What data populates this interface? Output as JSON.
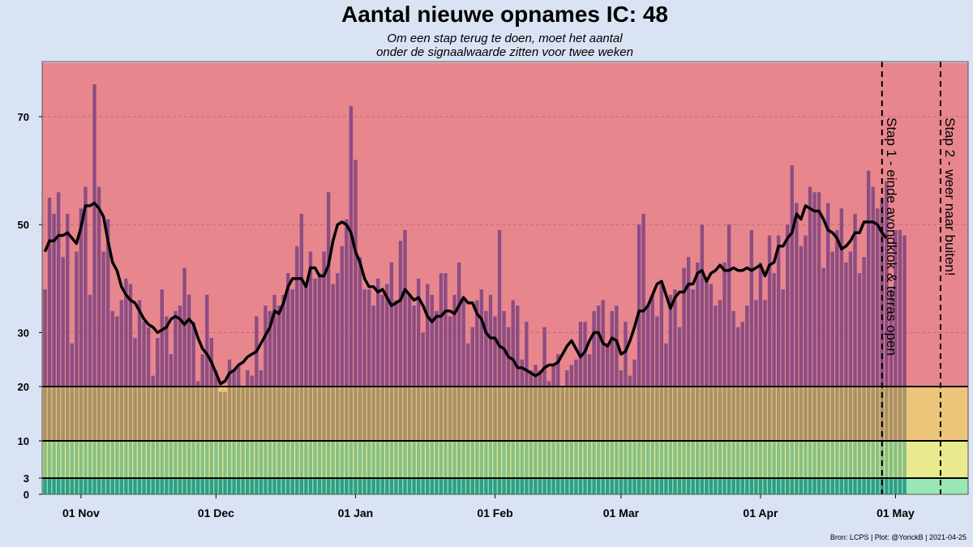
{
  "title": "Aantal nieuwe opnames IC:  48",
  "subtitle_line1": "Om een stap terug te doen, moet het aantal",
  "subtitle_line2": "onder de signaalwaarde zitten voor twee weken",
  "source": "Bron: LCPS | Plot: @YorickB |  2021-04-25",
  "colors": {
    "red_zone": "#e8868e",
    "orange_zone": "#ecc47a",
    "yellow_zone": "#e8ea8d",
    "green_zone": "#9ae6b4",
    "bar_purple": "#8c4d82",
    "bar_olive": "#a99268",
    "bar_green": "#88bf88",
    "bar_teal": "#2e9e88",
    "background": "#d9e3f3"
  },
  "chart_data": {
    "type": "bar",
    "x_start": "2020-10-24",
    "x_ticks": [
      "01 Nov",
      "01 Dec",
      "01 Jan",
      "01 Feb",
      "01 Mar",
      "01 Apr",
      "01 May"
    ],
    "y_ticks": [
      0,
      3,
      10,
      20,
      30,
      50,
      70
    ],
    "ylim": [
      0,
      80
    ],
    "thresholds": [
      3,
      10,
      20
    ],
    "grid_lines": [
      30,
      50,
      70
    ],
    "series": [
      {
        "name": "",
        "type": "bar",
        "values": [
          38,
          55,
          52,
          56,
          44,
          52,
          28,
          45,
          53,
          57,
          37,
          76,
          57,
          45,
          51,
          34,
          33,
          36,
          40,
          39,
          29,
          36,
          32,
          31,
          22,
          29,
          38,
          33,
          26,
          34,
          35,
          42,
          37,
          32,
          21,
          26,
          37,
          29,
          23,
          19,
          19,
          25,
          23,
          24,
          20,
          23,
          22,
          33,
          23,
          35,
          34,
          37,
          35,
          37,
          41,
          38,
          46,
          52,
          39,
          45,
          40,
          41,
          45,
          56,
          39,
          41,
          46,
          51,
          72,
          62,
          44,
          38,
          38,
          35,
          40,
          37,
          39,
          43,
          36,
          47,
          49,
          37,
          35,
          40,
          30,
          39,
          37,
          34,
          41,
          41,
          33,
          37,
          43,
          36,
          28,
          31,
          36,
          38,
          34,
          37,
          33,
          49,
          34,
          31,
          36,
          35,
          25,
          32,
          23,
          24,
          23,
          31,
          21,
          24,
          26,
          20,
          23,
          24,
          25,
          32,
          32,
          26,
          34,
          35,
          36,
          28,
          34,
          35,
          23,
          32,
          22,
          25,
          50,
          52,
          35,
          37,
          33,
          39,
          28,
          37,
          38,
          31,
          42,
          44,
          38,
          43,
          50,
          40,
          39,
          35,
          36,
          43,
          50,
          34,
          31,
          32,
          35,
          49,
          36,
          43,
          36,
          48,
          41,
          48,
          38,
          50,
          61,
          54,
          46,
          48,
          57,
          56,
          56,
          42,
          54,
          45,
          49,
          53,
          43,
          45,
          52,
          41,
          44,
          60,
          57,
          53,
          55,
          58,
          38,
          49,
          49,
          48
        ]
      },
      {
        "name": "",
        "type": "line",
        "values": [
          45,
          47,
          47,
          48,
          48,
          48.5,
          47.5,
          46.5,
          49.5,
          53.5,
          53.5,
          54,
          53,
          51.5,
          47,
          43,
          41.5,
          38.5,
          37,
          36,
          35.5,
          34,
          32.5,
          31.5,
          31,
          30,
          30.5,
          31,
          32.5,
          33,
          32.5,
          31.5,
          32.5,
          31.5,
          29,
          27,
          26,
          24.5,
          22.5,
          20.5,
          21,
          22.5,
          23,
          24,
          24.5,
          25.5,
          26,
          26.5,
          28,
          29.5,
          31,
          34,
          33.5,
          35.5,
          38.5,
          40,
          40,
          40,
          38.5,
          42,
          42,
          40.5,
          40.5,
          42.5,
          47,
          50,
          50.5,
          50,
          48.5,
          45,
          43,
          40,
          38.5,
          38.5,
          37.5,
          38,
          36.5,
          35,
          35.5,
          36,
          38,
          37,
          36,
          36.5,
          35,
          33,
          32,
          33,
          33,
          34,
          34,
          33.5,
          35,
          36.5,
          35.5,
          35.5,
          33.5,
          32.5,
          30,
          29,
          29,
          27.5,
          27,
          25.5,
          25,
          23.5,
          23.5,
          23,
          22.5,
          22,
          22.5,
          23.5,
          24,
          24,
          24.5,
          26,
          27.5,
          28.5,
          27,
          25.5,
          26.5,
          28.5,
          30,
          30,
          28,
          27.5,
          29,
          28.5,
          26,
          26.5,
          28.5,
          31,
          34,
          34,
          35,
          37,
          39,
          39.5,
          37,
          34.5,
          36.5,
          37.5,
          37.5,
          39,
          39,
          41,
          41.5,
          39.5,
          41,
          41.5,
          42.5,
          41.5,
          41.5,
          42,
          41.5,
          41.5,
          42,
          41.5,
          42,
          42.5,
          40.5,
          42.5,
          43,
          46,
          46,
          47.5,
          48.5,
          52,
          51,
          53.5,
          53,
          52.5,
          52.5,
          51,
          49,
          48.5,
          47.5,
          45.5,
          46,
          47,
          48.5,
          48.5,
          50.5,
          50.5,
          50.5,
          50,
          48.5,
          47.5
        ]
      }
    ],
    "annotations": [
      {
        "text": "Stap 1 - einde avondklok & terras open",
        "date": "2021-04-28"
      },
      {
        "text": "Stap 2 - weer naar buiten!",
        "date": "2021-05-11"
      }
    ]
  }
}
